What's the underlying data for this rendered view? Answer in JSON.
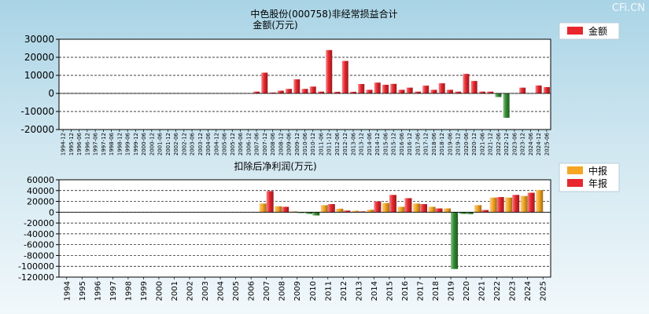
{
  "watermark": "CFi.CN",
  "colors": {
    "profit_bar": "#e8262d",
    "loss_bar": "#2f8a2f",
    "interim_bar": "#f5a623",
    "annual_bar": "#e8262d",
    "gridline": "#000000",
    "plot_bg": "#ffffff",
    "text": "#000000"
  },
  "chart_data": [
    {
      "type": "bar",
      "title": "中色股份(000758)非经常损益合计",
      "subtitle": "金额(万元)",
      "legend": [
        "金额"
      ],
      "legend_position": "top-right",
      "ylim": [
        -20000,
        30000
      ],
      "yticks": [
        30000,
        20000,
        10000,
        0,
        -10000,
        -20000
      ],
      "grid": true,
      "categories": [
        "1994-12",
        "1995-12",
        "1996-06",
        "1996-12",
        "1997-06",
        "1997-12",
        "1998-06",
        "1998-12",
        "1999-06",
        "1999-12",
        "2000-06",
        "2000-12",
        "2001-06",
        "2001-12",
        "2002-06",
        "2002-12",
        "2003-06",
        "2003-12",
        "2004-06",
        "2004-12",
        "2005-06",
        "2005-12",
        "2006-06",
        "2006-12",
        "2007-06",
        "2007-12",
        "2008-06",
        "2008-12",
        "2009-06",
        "2009-12",
        "2010-06",
        "2010-12",
        "2011-06",
        "2011-12",
        "2012-06",
        "2012-12",
        "2013-06",
        "2013-12",
        "2014-06",
        "2014-12",
        "2015-06",
        "2015-12",
        "2016-06",
        "2016-12",
        "2017-06",
        "2017-12",
        "2018-06",
        "2018-12",
        "2019-06",
        "2019-12",
        "2020-06",
        "2020-12",
        "2021-06",
        "2021-12",
        "2022-06",
        "2022-12",
        "2023-06",
        "2023-12",
        "2024-06",
        "2024-12",
        "2025-06"
      ],
      "values": [
        0,
        0,
        0,
        0,
        0,
        0,
        0,
        0,
        0,
        0,
        0,
        0,
        0,
        0,
        0,
        0,
        0,
        0,
        0,
        0,
        0,
        0,
        0,
        0,
        1000,
        11500,
        500,
        1500,
        2500,
        7800,
        2500,
        3800,
        1000,
        24000,
        900,
        18000,
        900,
        5200,
        2000,
        6000,
        4800,
        5300,
        2000,
        3200,
        1000,
        4300,
        2000,
        5600,
        2000,
        1000,
        10800,
        6900,
        1000,
        1000,
        -2000,
        -13500,
        0,
        3200,
        0,
        4400,
        3500
      ]
    },
    {
      "type": "bar",
      "title": "扣除后净利润(万元)",
      "legend": [
        "中报",
        "年报"
      ],
      "legend_position": "top-right",
      "ylim": [
        -120000,
        60000
      ],
      "yticks": [
        60000,
        40000,
        20000,
        0,
        -20000,
        -40000,
        -60000,
        -80000,
        -100000,
        -120000
      ],
      "grid": true,
      "categories": [
        "1994",
        "1995",
        "1996",
        "1997",
        "1998",
        "1999",
        "2000",
        "2001",
        "2002",
        "2003",
        "2004",
        "2005",
        "2006",
        "2007",
        "2008",
        "2009",
        "2010",
        "2011",
        "2012",
        "2013",
        "2014",
        "2015",
        "2016",
        "2017",
        "2018",
        "2019",
        "2020",
        "2021",
        "2022",
        "2023",
        "2024",
        "2025"
      ],
      "series": [
        {
          "name": "中报",
          "values": [
            null,
            null,
            null,
            null,
            null,
            null,
            null,
            null,
            null,
            null,
            null,
            null,
            null,
            16000,
            11000,
            1500,
            -3000,
            13000,
            6500,
            2500,
            4500,
            17000,
            10000,
            16000,
            10000,
            7000,
            -3000,
            13000,
            27000,
            27000,
            30000,
            41000
          ]
        },
        {
          "name": "年报",
          "values": [
            null,
            null,
            null,
            null,
            null,
            null,
            null,
            null,
            null,
            null,
            null,
            null,
            null,
            39000,
            10000,
            -1500,
            -6000,
            15000,
            3000,
            1500,
            20000,
            32000,
            26000,
            15000,
            7000,
            -105000,
            -3500,
            4000,
            28000,
            32000,
            36000,
            null
          ]
        }
      ]
    }
  ]
}
